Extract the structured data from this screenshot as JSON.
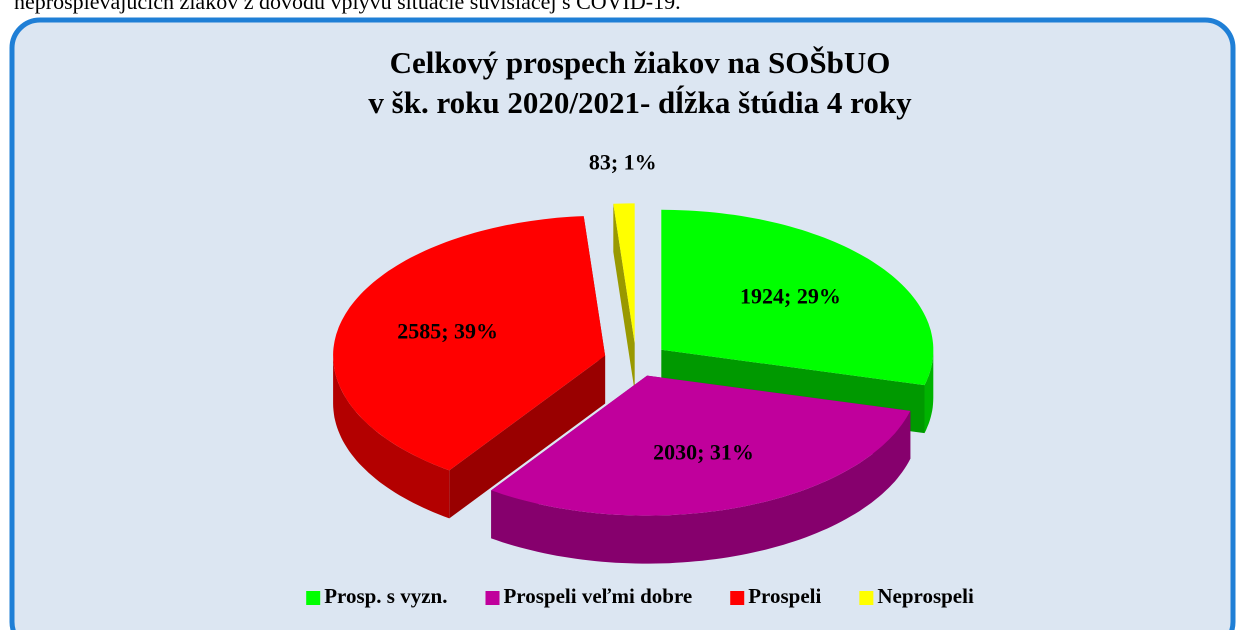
{
  "header_text": "neprospievajúcich žiakov z dôvodu vplyvu situácie súvisiacej s COVID-19.",
  "chart_data": {
    "type": "pie3d",
    "title": [
      "Celkový prospech žiakov na SOŠbUO",
      "v šk. roku 2020/2021- dĺžka štúdia 4 roky"
    ],
    "categories": [
      "Prosp. s vyzn.",
      "Prospeli veľmi dobre",
      "Prospeli",
      "Neprospeli"
    ],
    "values": [
      1924,
      2030,
      2585,
      83
    ],
    "value_labels": [
      "1924; 29%",
      "2030; 31%",
      "2585; 39%",
      "83; 1%"
    ],
    "colors": [
      "#00ff00",
      "#c0009c",
      "#ff0000",
      "#ffff00"
    ],
    "legend": "bottom"
  }
}
